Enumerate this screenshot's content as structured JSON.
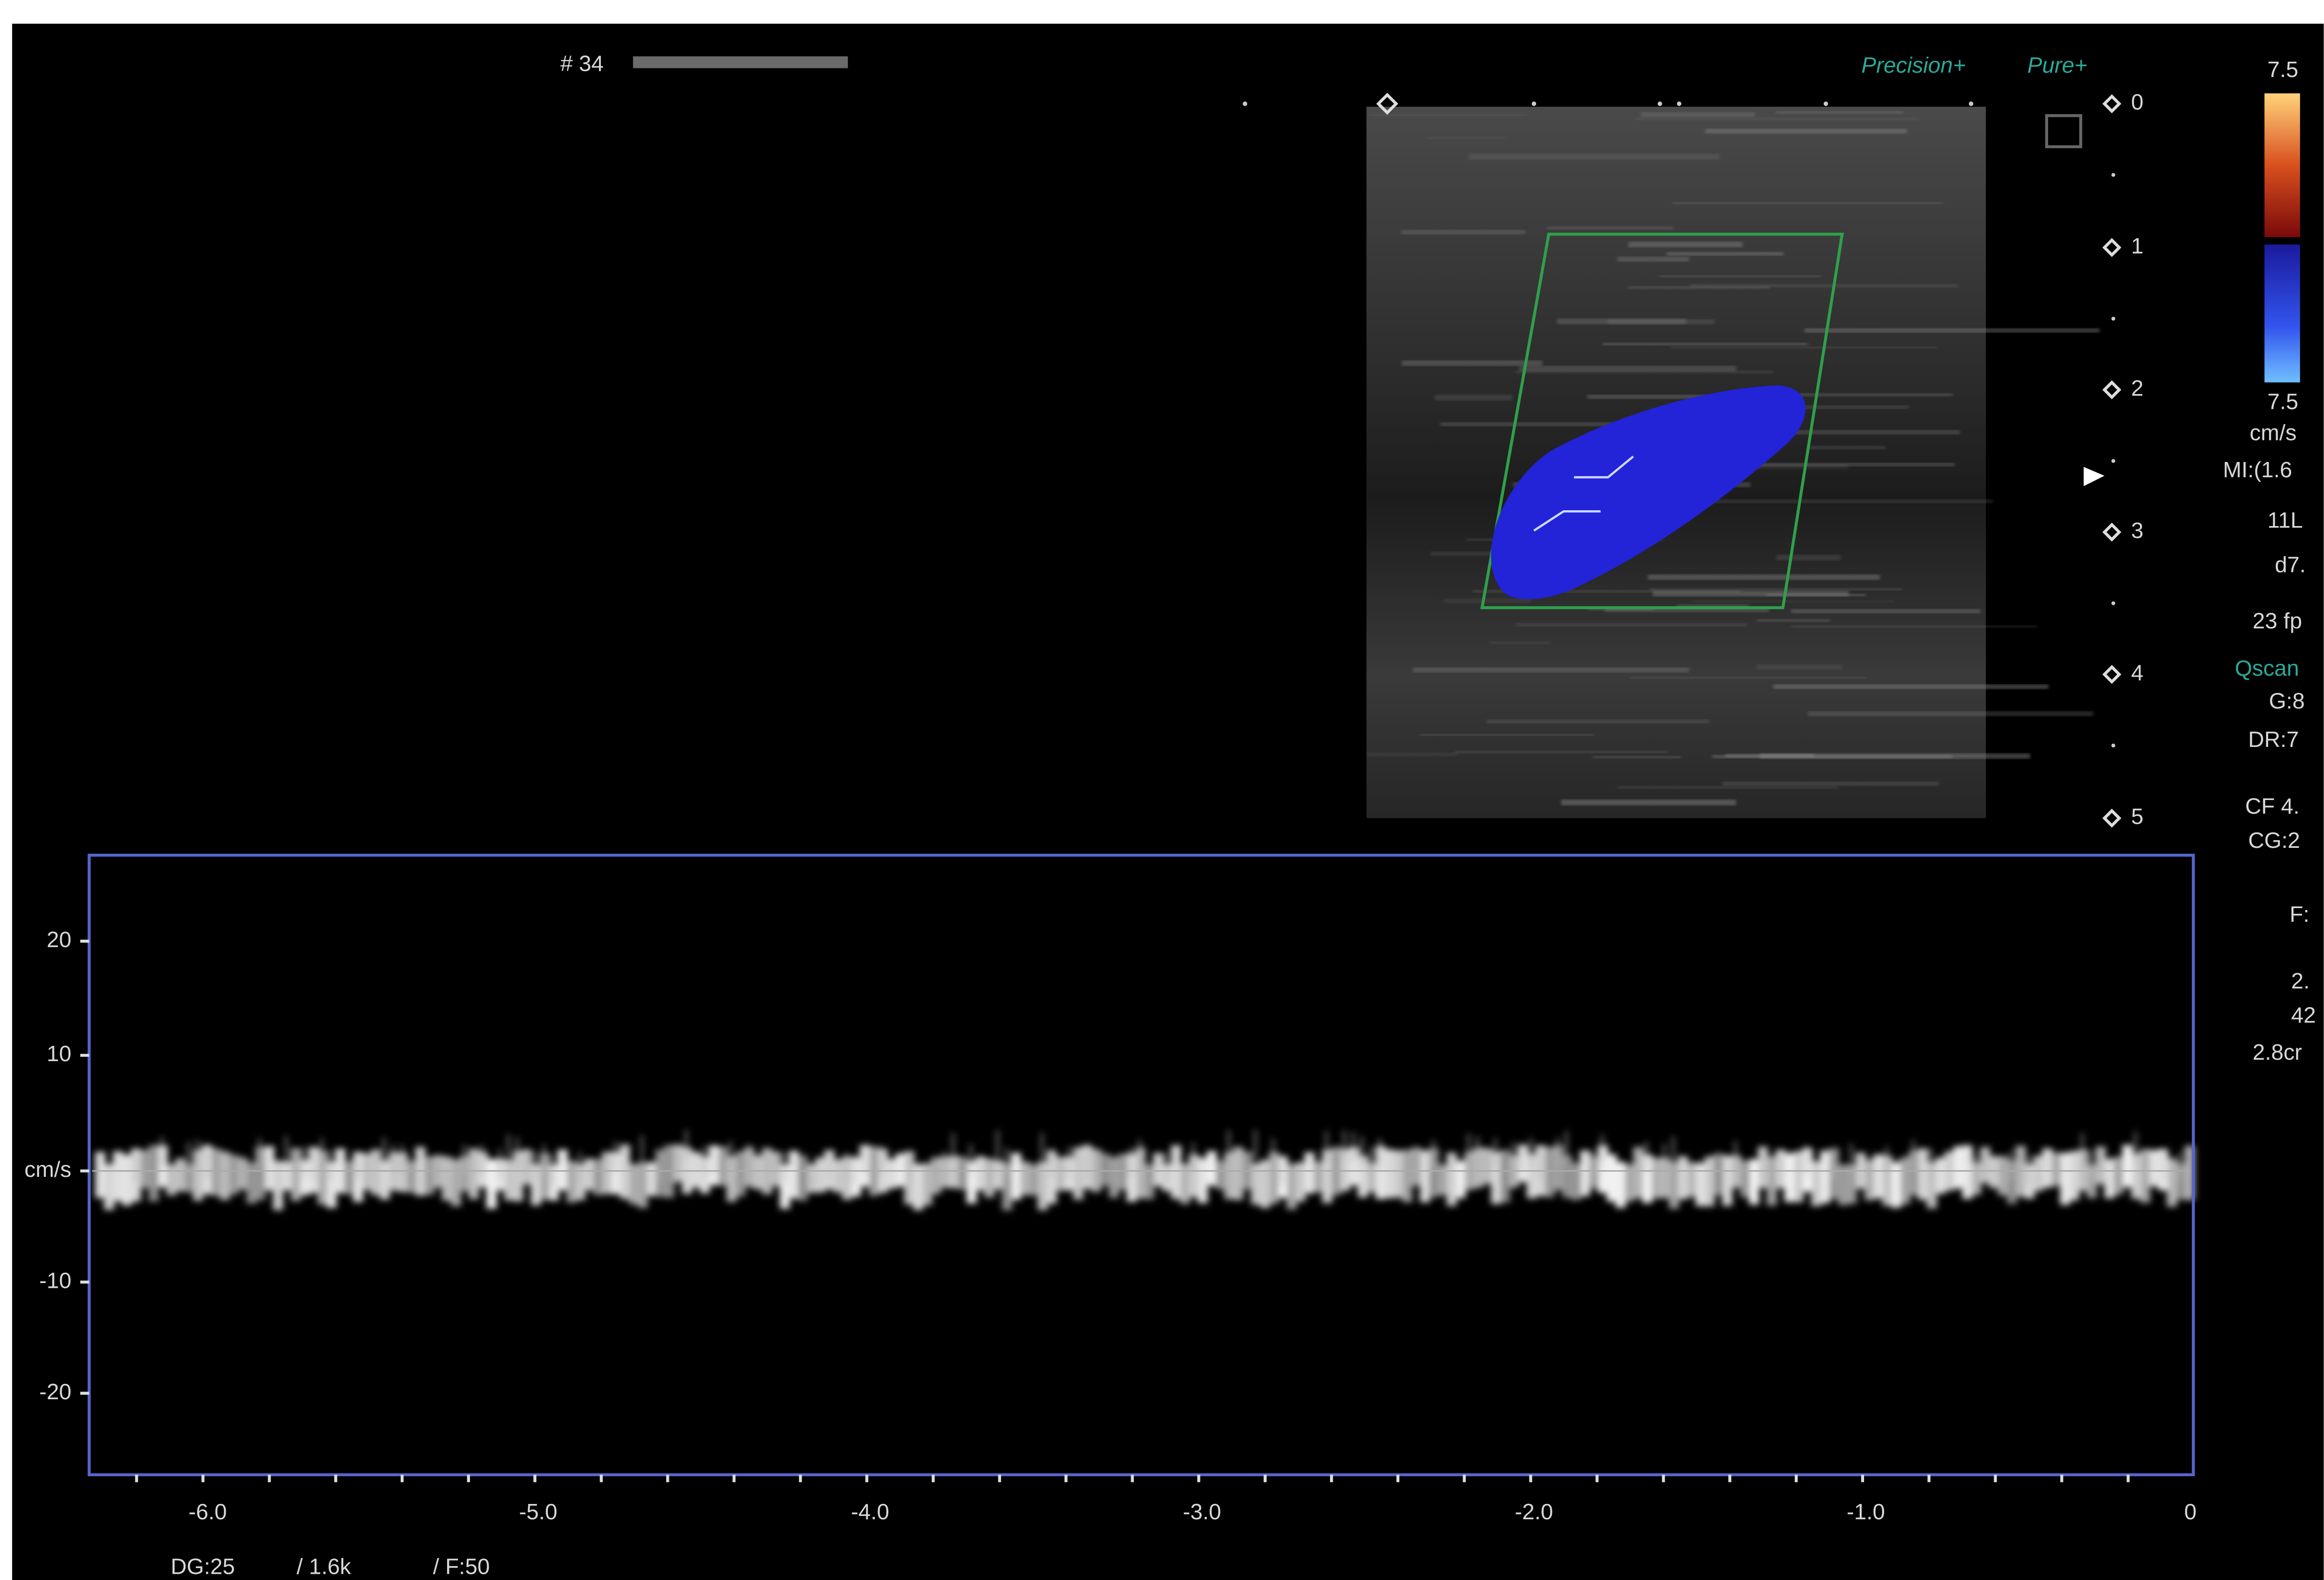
{
  "header": {
    "frame": "# 34",
    "brand": [
      "Precision+",
      "Pure+"
    ]
  },
  "depth_scale": [
    "0",
    "1",
    "2",
    "3",
    "4",
    "5"
  ],
  "color_scale": {
    "top": "7.5",
    "bottom": "7.5",
    "unit": "cm/s"
  },
  "side_panel": [
    "MI:(1.6",
    "11L",
    "d7.",
    "23 fp",
    "Qscan",
    "G:8",
    "DR:7",
    "CF 4.",
    "CG:2",
    "F:",
    "2.",
    "42",
    "2.8cr"
  ],
  "spectrum": {
    "y_labels": [
      "20",
      "10",
      "cm/s",
      "-10",
      "-20"
    ],
    "x_labels": [
      "-6.0",
      "-5.0",
      "-4.0",
      "-3.0",
      "-2.0",
      "-1.0",
      "0"
    ]
  },
  "footer": [
    "DG:25",
    "/ 1.6k",
    "/ F:50"
  ]
}
